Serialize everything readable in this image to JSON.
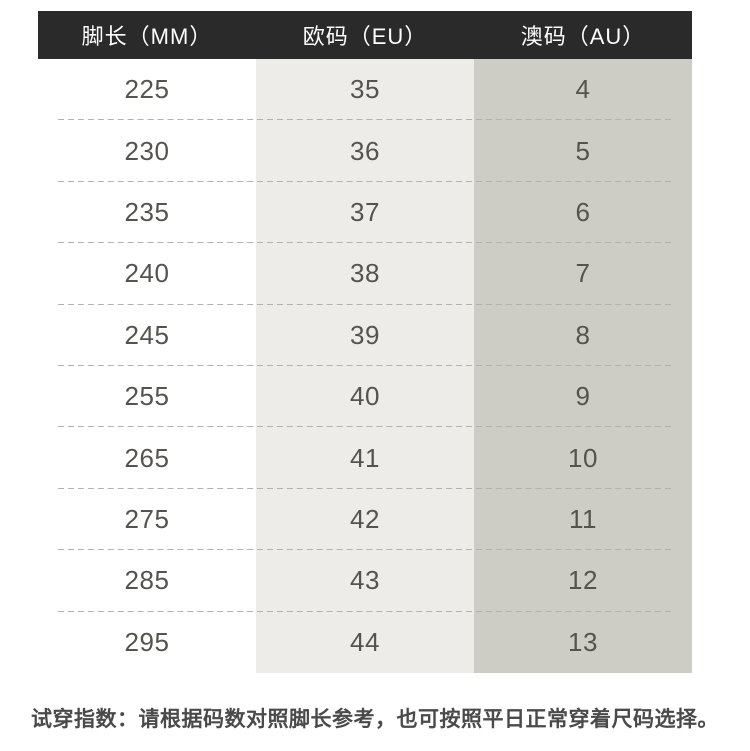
{
  "table": {
    "headers": [
      "脚长（MM）",
      "欧码（EU）",
      "澳码（AU）"
    ],
    "rows": [
      [
        "225",
        "35",
        "4"
      ],
      [
        "230",
        "36",
        "5"
      ],
      [
        "235",
        "37",
        "6"
      ],
      [
        "240",
        "38",
        "7"
      ],
      [
        "245",
        "39",
        "8"
      ],
      [
        "255",
        "40",
        "9"
      ],
      [
        "265",
        "41",
        "10"
      ],
      [
        "275",
        "42",
        "11"
      ],
      [
        "285",
        "43",
        "12"
      ],
      [
        "295",
        "44",
        "13"
      ]
    ]
  },
  "note": "试穿指数：请根据码数对照脚长参考，也可按照平日正常穿着尺码选择。",
  "colors": {
    "header_bg": "#2a2a2a",
    "header_text": "#ffffff",
    "col1_bg": "#ffffff",
    "col2_bg": "#edece8",
    "col3_bg": "#cdccc5",
    "dash_color": "#b3b2ac",
    "num_color": "#55534e",
    "note_color": "#4a4a4a"
  },
  "chart_data": {
    "type": "table",
    "columns": [
      "脚长（MM）",
      "欧码（EU）",
      "澳码（AU）"
    ],
    "rows": [
      [
        225,
        35,
        4
      ],
      [
        230,
        36,
        5
      ],
      [
        235,
        37,
        6
      ],
      [
        240,
        38,
        7
      ],
      [
        245,
        39,
        8
      ],
      [
        255,
        40,
        9
      ],
      [
        265,
        41,
        10
      ],
      [
        275,
        42,
        11
      ],
      [
        285,
        43,
        12
      ],
      [
        295,
        44,
        13
      ]
    ],
    "footnote": "试穿指数：请根据码数对照脚长参考，也可按照平日正常穿着尺码选择。",
    "layout": {
      "header_style": "dark-bar",
      "row_separator": "dashed",
      "column_shading": [
        "white",
        "light-gray",
        "gray"
      ]
    }
  }
}
